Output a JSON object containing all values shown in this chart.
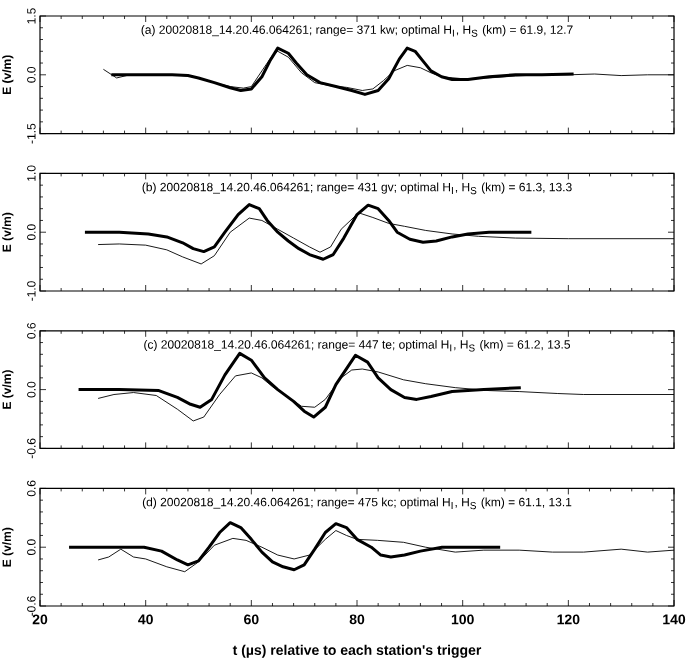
{
  "chart_data": [
    {
      "type": "line",
      "annotations": [
        "(a) 20020818_14.20.46.064261; range= 371    kw; optimal H$_{I}$, H$_{S}$ (km) = 61.9, 12.7"
      ],
      "ylabel": "E (v/m)",
      "xlim": [
        20,
        140
      ],
      "ylim": [
        -1.5,
        1.5
      ],
      "xticks": [
        20,
        40,
        60,
        80,
        100,
        120,
        140
      ],
      "yticks": [
        -1.5,
        {
          "value": 0,
          "label": "0.0"
        },
        1.5
      ],
      "tick_labels": "y",
      "series": [
        {
          "color": "#000000",
          "x": [
            32,
            34.5,
            37,
            40,
            45,
            48,
            50,
            53,
            56,
            58.5,
            60,
            62,
            64,
            65,
            67,
            69.5,
            72,
            75,
            78,
            81,
            83,
            85,
            87,
            89.5,
            92,
            94,
            96,
            100,
            105,
            110,
            115,
            120,
            125,
            130,
            135,
            140
          ],
          "values": [
            0.14,
            -0.08,
            0,
            0,
            0,
            -0.03,
            -0.08,
            -0.2,
            -0.3,
            -0.34,
            -0.3,
            0.1,
            0.5,
            0.6,
            0.45,
            0.05,
            -0.2,
            -0.28,
            -0.32,
            -0.4,
            -0.36,
            -0.15,
            0.1,
            0.24,
            0.18,
            0.05,
            -0.05,
            -0.1,
            -0.08,
            -0.03,
            0,
            0,
            0.02,
            -0.02,
            0,
            0
          ]
        },
        {
          "color": "#000000",
          "x": [
            33.5,
            40,
            45,
            48,
            50,
            53,
            56,
            58,
            60,
            62,
            63.5,
            65,
            67,
            68.5,
            70.5,
            73,
            76,
            79,
            81.5,
            84,
            86,
            88,
            89.5,
            91,
            92.5,
            94,
            96,
            98,
            101,
            105,
            110,
            115,
            121
          ],
          "values": [
            0,
            0,
            0,
            -0.02,
            -0.08,
            -0.2,
            -0.33,
            -0.4,
            -0.36,
            -0.05,
            0.35,
            0.68,
            0.55,
            0.3,
            0,
            -0.2,
            -0.3,
            -0.4,
            -0.5,
            -0.4,
            -0.1,
            0.4,
            0.68,
            0.6,
            0.35,
            0.1,
            -0.05,
            -0.12,
            -0.12,
            -0.05,
            0,
            0,
            0.02
          ]
        }
      ]
    },
    {
      "type": "line",
      "annotations": [
        "(b) 20020818_14.20.46.064261; range= 431    gv; optimal H$_{I}$, H$_{S}$ (km) = 61.3, 13.3"
      ],
      "ylabel": "E (v/m)",
      "xlim": [
        20,
        140
      ],
      "ylim": [
        -1.0,
        1.0
      ],
      "xticks": [
        20,
        40,
        60,
        80,
        100,
        120,
        140
      ],
      "yticks": [
        {
          "value": -1,
          "label": "-1.0"
        },
        {
          "value": 0,
          "label": "0.0"
        },
        {
          "value": 1,
          "label": "1.0"
        }
      ],
      "tick_labels": "y",
      "series": [
        {
          "color": "#000000",
          "x": [
            31,
            35,
            40,
            44,
            47,
            50.5,
            53,
            56,
            59.6,
            62,
            65,
            68,
            71,
            73,
            75,
            77,
            80.3,
            83,
            86,
            89,
            93,
            98,
            103,
            110,
            120,
            130,
            140
          ],
          "values": [
            -0.21,
            -0.2,
            -0.22,
            -0.3,
            -0.42,
            -0.54,
            -0.4,
            0,
            0.24,
            0.2,
            0.05,
            -0.1,
            -0.25,
            -0.34,
            -0.25,
            0.05,
            0.33,
            0.25,
            0.15,
            0.1,
            0.03,
            -0.03,
            -0.07,
            -0.1,
            -0.11,
            -0.11,
            -0.11
          ]
        },
        {
          "color": "#000000",
          "x": [
            28.5,
            35,
            40.5,
            44,
            47,
            49,
            51,
            53,
            55,
            57.5,
            59.6,
            61.5,
            63,
            65,
            67,
            69,
            71,
            73.6,
            75.5,
            77.5,
            80,
            82.1,
            84,
            86,
            87.6,
            90,
            92.5,
            95,
            98,
            101,
            105,
            113
          ],
          "values": [
            0,
            0,
            -0.03,
            -0.08,
            -0.18,
            -0.28,
            -0.33,
            -0.25,
            0,
            0.3,
            0.47,
            0.4,
            0.2,
            0,
            -0.15,
            -0.28,
            -0.38,
            -0.46,
            -0.38,
            -0.1,
            0.3,
            0.46,
            0.4,
            0.2,
            0,
            -0.12,
            -0.17,
            -0.15,
            -0.08,
            -0.03,
            0,
            0
          ]
        }
      ]
    },
    {
      "type": "line",
      "annotations": [
        "(c)  20020818_14.20.46.064261; range= 447    te; optimal H$_{I}$, H$_{S}$ (km) = 61.2, 13.5"
      ],
      "ylabel": "E (v/m)",
      "xlim": [
        20,
        140
      ],
      "ylim": [
        -0.6,
        0.6
      ],
      "xticks": [
        20,
        40,
        60,
        80,
        100,
        120,
        140
      ],
      "yticks": [
        -0.6,
        {
          "value": 0,
          "label": "0.0"
        },
        0.6
      ],
      "tick_labels": "y",
      "series": [
        {
          "color": "#000000",
          "x": [
            31,
            34,
            37.7,
            42,
            46,
            49,
            51,
            54,
            57,
            60,
            62,
            64,
            66.5,
            69.5,
            72,
            74,
            77,
            79,
            81,
            84,
            88.8,
            93,
            98.6,
            105,
            110.7,
            118,
            122.9,
            130,
            140
          ],
          "values": [
            -0.09,
            -0.05,
            -0.03,
            -0.06,
            -0.2,
            -0.32,
            -0.28,
            -0.05,
            0.14,
            0.17,
            0.12,
            0.03,
            -0.06,
            -0.17,
            -0.18,
            -0.1,
            0.12,
            0.2,
            0.21,
            0.18,
            0.1,
            0.06,
            0.02,
            -0.01,
            -0.02,
            -0.04,
            -0.05,
            -0.05,
            -0.05
          ]
        },
        {
          "color": "#000000",
          "x": [
            27.3,
            35,
            42.5,
            46,
            48.5,
            50.3,
            52.5,
            55,
            57.8,
            60,
            62.5,
            65,
            68,
            70,
            71.8,
            74,
            76,
            79.7,
            82,
            84,
            86.4,
            89,
            91.3,
            94,
            98,
            104,
            111
          ],
          "values": [
            0,
            0,
            -0.01,
            -0.08,
            -0.15,
            -0.18,
            -0.1,
            0.15,
            0.37,
            0.3,
            0.12,
            0,
            -0.12,
            -0.22,
            -0.28,
            -0.18,
            0.05,
            0.35,
            0.28,
            0.12,
            0,
            -0.08,
            -0.1,
            -0.07,
            -0.02,
            0,
            0.02
          ]
        }
      ]
    },
    {
      "type": "line",
      "annotations": [
        "(d) 20020818_14.20.46.064261; range= 475    kc; optimal H$_{I}$, H$_{S}$ (km) = 61.1, 13.1"
      ],
      "ylabel": "E (v/m)",
      "xlabel": "t (µs) relative to each station's trigger",
      "xlim": [
        20,
        140
      ],
      "ylim": [
        -0.6,
        0.6
      ],
      "xticks": [
        20,
        40,
        60,
        80,
        100,
        120,
        140
      ],
      "yticks": [
        -0.6,
        {
          "value": 0,
          "label": "0.0"
        },
        0.6
      ],
      "series": [
        {
          "color": "#000000",
          "x": [
            31,
            33,
            35.3,
            37.7,
            40,
            44,
            47.4,
            50,
            53,
            56.5,
            59,
            62,
            65,
            68.1,
            71,
            74,
            76,
            78,
            80,
            83.9,
            88.8,
            93,
            98.6,
            104,
            110.7,
            117,
            122.9,
            130,
            135,
            140
          ],
          "values": [
            -0.13,
            -0.1,
            -0.02,
            -0.1,
            -0.12,
            -0.2,
            -0.25,
            -0.15,
            0.02,
            0.09,
            0.07,
            0,
            -0.08,
            -0.12,
            -0.08,
            0.08,
            0.17,
            0.12,
            0.08,
            0.07,
            0.05,
            0,
            -0.05,
            -0.03,
            -0.03,
            -0.05,
            -0.05,
            -0.02,
            -0.05,
            -0.03
          ]
        },
        {
          "color": "#000000",
          "x": [
            25.5,
            32,
            39.7,
            43,
            46,
            48,
            50,
            52,
            54,
            56,
            58,
            60,
            62,
            64,
            66,
            68.1,
            70,
            72,
            74,
            76,
            78,
            80,
            82.7,
            84.5,
            86.4,
            89,
            92,
            96.1,
            100,
            107.1
          ],
          "values": [
            0,
            0,
            0,
            -0.04,
            -0.13,
            -0.18,
            -0.14,
            0,
            0.15,
            0.25,
            0.2,
            0.08,
            -0.05,
            -0.15,
            -0.2,
            -0.23,
            -0.18,
            -0.02,
            0.15,
            0.24,
            0.2,
            0.08,
            0,
            -0.08,
            -0.1,
            -0.08,
            -0.04,
            0,
            0,
            0
          ]
        }
      ]
    }
  ]
}
